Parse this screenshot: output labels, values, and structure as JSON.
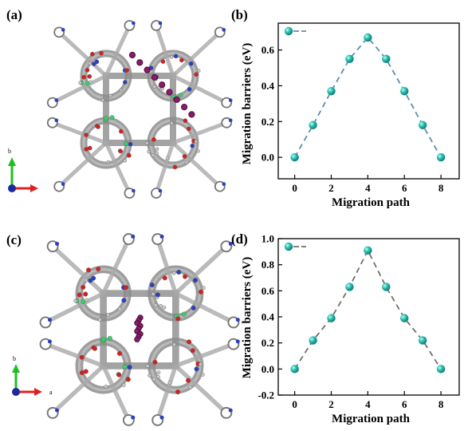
{
  "panels": {
    "a": {
      "label": "(a)",
      "axes": {
        "b": "b",
        "a": ""
      }
    },
    "b": {
      "label": "(b)"
    },
    "c": {
      "label": "(c)",
      "axes": {
        "b": "b",
        "a": "a"
      }
    },
    "d": {
      "label": "(d)"
    }
  },
  "colors": {
    "marker": "#2bc4b6",
    "dash_b": "#5b8fa8",
    "dash_d": "#6e6e6e",
    "atom_grey": "#8c8c8c",
    "atom_red": "#d42020",
    "atom_blue": "#2a3fbf",
    "atom_green": "#33d36a",
    "atom_purple": "#8a1c6a",
    "axis_green": "#1fbf1f",
    "axis_red": "#e02020",
    "axis_blue": "#1a2a9c"
  },
  "chart_data": [
    {
      "id": "b",
      "type": "line",
      "title": "",
      "xlabel": "Migration path",
      "ylabel": "Migration barriers (eV)",
      "x": [
        0,
        1,
        2,
        3,
        4,
        5,
        6,
        7,
        8
      ],
      "y": [
        0.0,
        0.18,
        0.37,
        0.55,
        0.67,
        0.55,
        0.37,
        0.18,
        0.0
      ],
      "xlim": [
        -0.9,
        9.0
      ],
      "ylim": [
        -0.12,
        0.75
      ],
      "xticks": [
        "0",
        "2",
        "4",
        "6",
        "8"
      ],
      "yticks": [
        "0.0",
        "0.2",
        "0.4",
        "0.6"
      ],
      "line_style": "dashed",
      "legend": "top-left",
      "grid": false
    },
    {
      "id": "d",
      "type": "line",
      "title": "",
      "xlabel": "Migration path",
      "ylabel": "Migration barriers (eV)",
      "x": [
        0,
        1,
        2,
        3,
        4,
        5,
        6,
        7,
        8
      ],
      "y": [
        0.0,
        0.22,
        0.39,
        0.63,
        0.91,
        0.63,
        0.39,
        0.22,
        0.0
      ],
      "xlim": [
        -0.9,
        9.0
      ],
      "ylim": [
        -0.2,
        1.0
      ],
      "xticks": [
        "0",
        "2",
        "4",
        "6",
        "8"
      ],
      "yticks": [
        "-0.2",
        "0.0",
        "0.2",
        "0.4",
        "0.6",
        "0.8",
        "1.0"
      ],
      "line_style": "dashed",
      "legend": "top-left",
      "grid": false
    }
  ]
}
